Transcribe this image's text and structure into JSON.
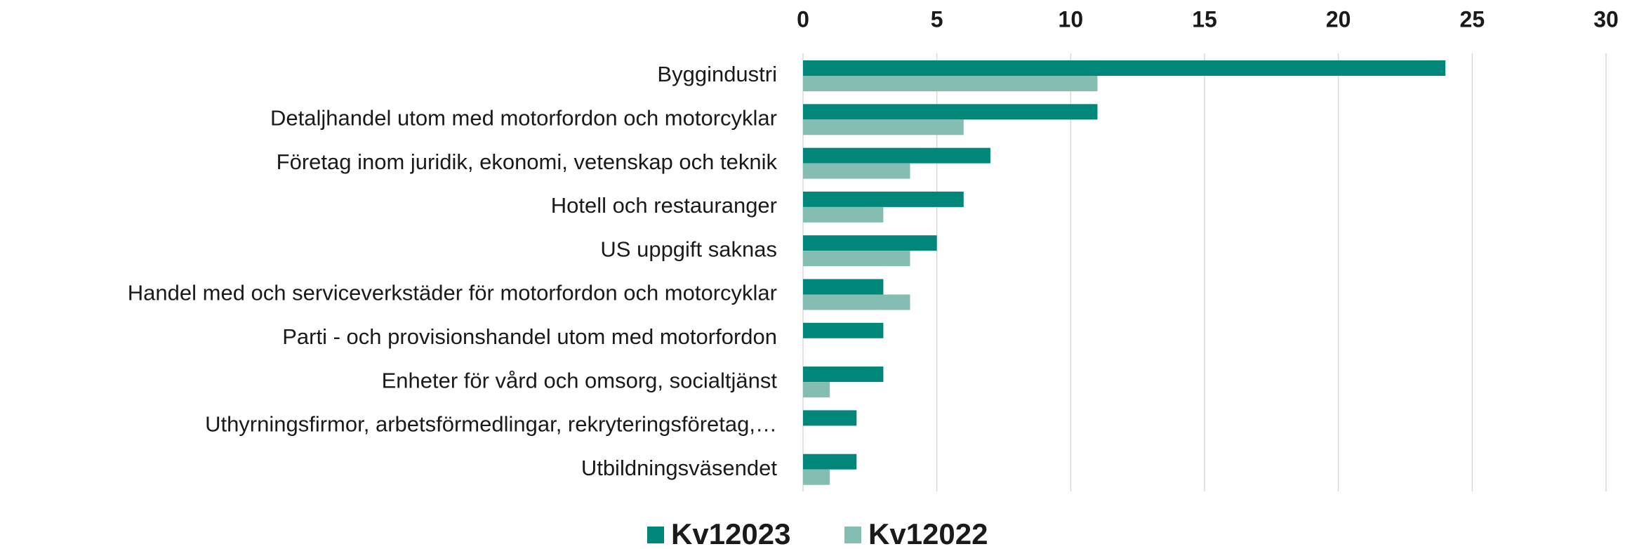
{
  "chart_data": {
    "type": "hbar",
    "categories": [
      "Byggindustri",
      "Detaljhandel utom med motorfordon och motorcyklar",
      "Företag inom juridik, ekonomi, vetenskap och teknik",
      "Hotell och restauranger",
      "US uppgift saknas",
      "Handel med och serviceverkstäder för motorfordon och motorcyklar",
      "Parti - och provisionshandel utom med motorfordon",
      "Enheter för vård och omsorg, socialtjänst",
      "Uthyrningsfirmor, arbetsförmedlingar, rekryteringsföretag,…",
      "Utbildningsväsendet"
    ],
    "series": [
      {
        "name": "Kv12023",
        "color": "#00877a",
        "values": [
          24,
          11,
          7,
          6,
          5,
          3,
          3,
          3,
          2,
          2
        ]
      },
      {
        "name": "Kv12022",
        "color": "#85bdb3",
        "values": [
          11,
          6,
          4,
          3,
          4,
          4,
          0,
          1,
          0,
          1
        ]
      }
    ],
    "xlim": [
      0,
      30
    ],
    "xticks": [
      0,
      5,
      10,
      15,
      20,
      25,
      30
    ],
    "grid": true,
    "legend": "bottom"
  }
}
